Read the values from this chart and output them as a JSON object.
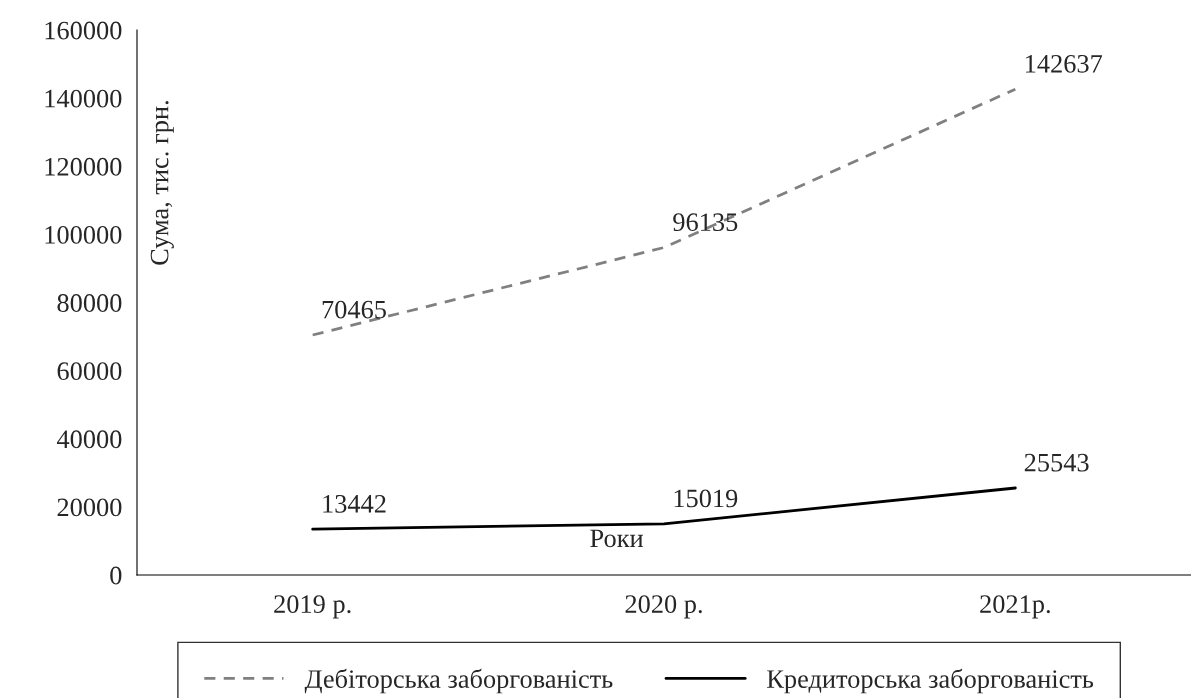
{
  "chart_data": {
    "type": "line",
    "categories": [
      "2019 р.",
      "2020 р.",
      "2021р."
    ],
    "series": [
      {
        "name": "Дебіторська заборгованість",
        "color": "#808080",
        "line_style": "dashed",
        "values": [
          70465,
          96135,
          142637
        ]
      },
      {
        "name": "Кредиторська заборгованість",
        "color": "#000000",
        "line_style": "solid",
        "values": [
          13442,
          15019,
          25543
        ]
      }
    ],
    "xlabel": "Роки",
    "ylabel": "Сума, тис. грн.",
    "ylim": [
      0,
      160000
    ],
    "yticks": [
      0,
      20000,
      40000,
      60000,
      80000,
      100000,
      120000,
      140000,
      160000
    ],
    "data_labels": true,
    "grid": false,
    "legend": "bottom",
    "marker": "none"
  }
}
